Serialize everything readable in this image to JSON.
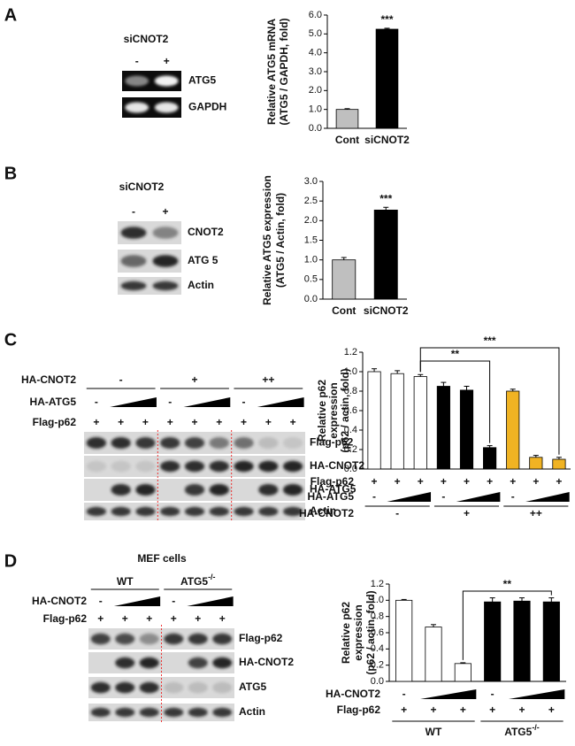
{
  "panels": [
    "A",
    "B",
    "C",
    "D"
  ],
  "blots": [
    {
      "header": "siCNOT2",
      "lanes": [
        "-",
        "+"
      ],
      "rows": [
        "ATG5",
        "GAPDH"
      ]
    },
    {
      "header": "siCNOT2",
      "lanes": [
        "-",
        "+"
      ],
      "rows": [
        "CNOT2",
        "ATG 5",
        "Actin"
      ]
    },
    {
      "treatments": [
        {
          "name": "HA-CNOT2",
          "groups": [
            "-",
            "+",
            "++"
          ]
        },
        {
          "name": "HA-ATG5",
          "dose": [
            "-",
            "-",
            "-"
          ]
        },
        {
          "name": "Flag-p62",
          "lanes": [
            "+",
            "+",
            "+",
            "+",
            "+",
            "+",
            "+",
            "+",
            "+"
          ]
        }
      ],
      "rows": [
        "Flag-p62",
        "HA-CNOT2",
        "HA-ATG5",
        "Actin"
      ]
    },
    {
      "header": "MEF cells",
      "group_labels": [
        {
          "text": "WT"
        },
        {
          "text": "ATG5",
          "sup": "-/-"
        }
      ],
      "treatments": [
        {
          "name": "HA-CNOT2",
          "dose": [
            "-",
            "-"
          ]
        },
        {
          "name": "Flag-p62",
          "lanes": [
            "+",
            "+",
            "+",
            "+",
            "+",
            "+"
          ]
        }
      ],
      "rows": [
        "Flag-p62",
        "HA-CNOT2",
        "ATG5",
        "Actin"
      ]
    }
  ],
  "chart_data": [
    {
      "type": "bar",
      "y_label": [
        "Relative ATG5 mRNA",
        "(ATG5 / GAPDH, fold)"
      ],
      "categories": [
        "Cont",
        "siCNOT2"
      ],
      "values": [
        1.0,
        5.25
      ],
      "errors": [
        0.04,
        0.05
      ],
      "colors": [
        "#bfbfbf",
        "#000000"
      ],
      "annotations": [
        "***"
      ],
      "ylim": [
        0,
        6
      ],
      "yticks": [
        {
          "value": 0,
          "label": "0.0"
        },
        {
          "value": 1,
          "label": "1.0"
        },
        {
          "value": 2,
          "label": "2.0"
        },
        {
          "value": 3,
          "label": "3.0"
        },
        {
          "value": 4,
          "label": "4.0"
        },
        {
          "value": 5,
          "label": "5.0"
        },
        {
          "value": 6,
          "label": "6.0"
        }
      ]
    },
    {
      "type": "bar",
      "y_label": [
        "Relative ATG5 expression",
        "(ATG5 / Actin, fold)"
      ],
      "categories": [
        "Cont",
        "siCNOT2"
      ],
      "values": [
        1.0,
        2.27
      ],
      "errors": [
        0.06,
        0.07
      ],
      "colors": [
        "#bfbfbf",
        "#000000"
      ],
      "annotations": [
        "***"
      ],
      "ylim": [
        0,
        3
      ],
      "yticks": [
        {
          "value": 0,
          "label": "0.0"
        },
        0.5,
        {
          "value": 1,
          "label": "1.0"
        },
        1.5,
        {
          "value": 2,
          "label": "2.0"
        },
        2.5,
        {
          "value": 3,
          "label": "3.0"
        }
      ]
    },
    {
      "type": "bar",
      "y_label": [
        "Relative p62",
        "expression",
        "(p62 / actin, fold)"
      ],
      "values": [
        1.0,
        0.98,
        0.95,
        0.85,
        0.81,
        0.22,
        0.8,
        0.12,
        0.1
      ],
      "errors": [
        0.03,
        0.03,
        0.02,
        0.04,
        0.04,
        0.02,
        0.02,
        0.02,
        0.02
      ],
      "colors": [
        "#ffffff",
        "#ffffff",
        "#ffffff",
        "#000000",
        "#000000",
        "#000000",
        "#f0b323",
        "#f0b323",
        "#f0b323"
      ],
      "annotations": [
        "**",
        "***"
      ],
      "conditions": [
        {
          "name": "Flag-p62",
          "lanes": [
            "+",
            "+",
            "+",
            "+",
            "+",
            "+",
            "+",
            "+",
            "+"
          ]
        },
        {
          "name": "HA-ATG5",
          "dose": [
            "-",
            "-",
            "-"
          ]
        },
        {
          "name": "HA-CNOT2",
          "groups": [
            "-",
            "+",
            "++"
          ]
        }
      ],
      "ylim": [
        0,
        1.2
      ],
      "yticks": [
        {
          "value": 0,
          "label": "0.0"
        },
        0.2,
        0.4,
        0.6,
        0.8,
        {
          "value": 1,
          "label": "1.0"
        },
        1.2
      ]
    },
    {
      "type": "bar",
      "y_label": [
        "Relative p62",
        "expression",
        "(p62 / actin, fold)"
      ],
      "values": [
        1.0,
        0.67,
        0.22,
        0.98,
        0.99,
        0.98
      ],
      "errors": [
        0.01,
        0.03,
        0.01,
        0.05,
        0.04,
        0.05
      ],
      "colors": [
        "#ffffff",
        "#ffffff",
        "#ffffff",
        "#000000",
        "#000000",
        "#000000"
      ],
      "annotations": [
        "**"
      ],
      "conditions": [
        {
          "name": "HA-CNOT2",
          "dose": [
            "-",
            "-"
          ]
        },
        {
          "name": "Flag-p62",
          "lanes": [
            "+",
            "+",
            "+",
            "+",
            "+",
            "+"
          ]
        }
      ],
      "group_labels": [
        {
          "text": "WT"
        },
        {
          "text": "ATG5",
          "sup": "-/-"
        }
      ],
      "ylim": [
        0,
        1.2
      ],
      "yticks": [
        {
          "value": 0,
          "label": "0.0"
        },
        0.2,
        0.4,
        0.6,
        0.8,
        {
          "value": 1,
          "label": "1.0"
        },
        1.2
      ]
    }
  ]
}
